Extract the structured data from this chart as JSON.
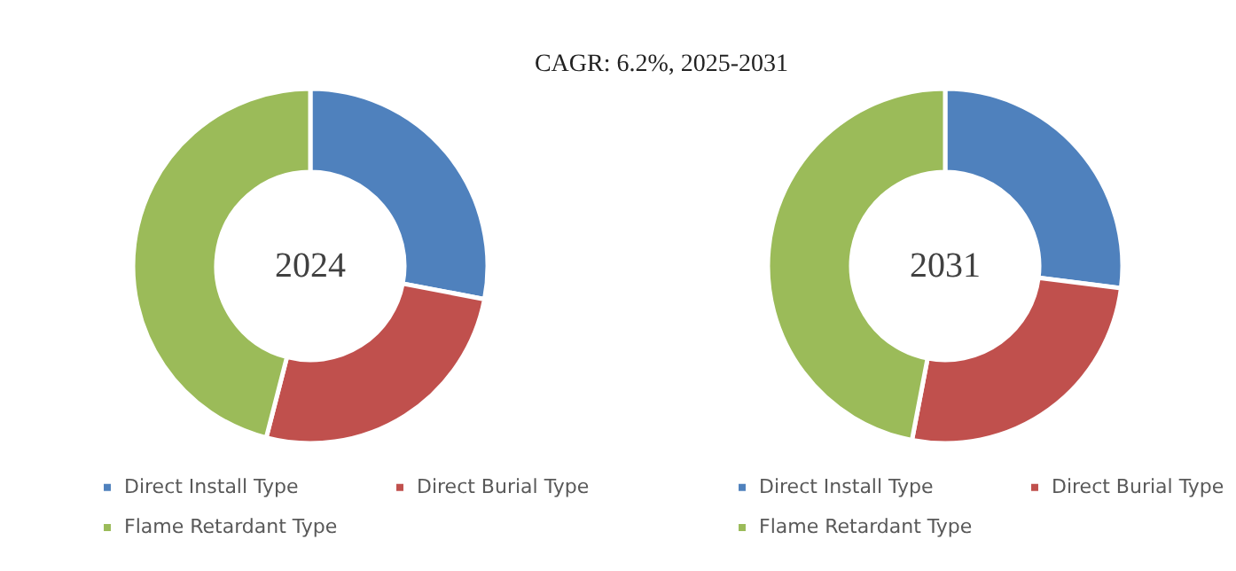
{
  "chart_data": [
    {
      "type": "donut",
      "title": "2024",
      "annotations": [
        "CAGR:   6.2%, 2025-2031"
      ],
      "categories": [
        "Direct Install Type",
        "Direct Burial Type",
        "Flame Retardant Type"
      ],
      "values": [
        28,
        26,
        46
      ],
      "colors": [
        "#4f81bd",
        "#c0504d",
        "#9bbb59"
      ],
      "legend": "bottom"
    },
    {
      "type": "donut",
      "title": "2031",
      "categories": [
        "Direct Install Type",
        "Direct Burial Type",
        "Flame Retardant Type"
      ],
      "values": [
        27,
        26,
        47
      ],
      "colors": [
        "#4f81bd",
        "#c0504d",
        "#9bbb59"
      ],
      "legend": "bottom"
    }
  ]
}
